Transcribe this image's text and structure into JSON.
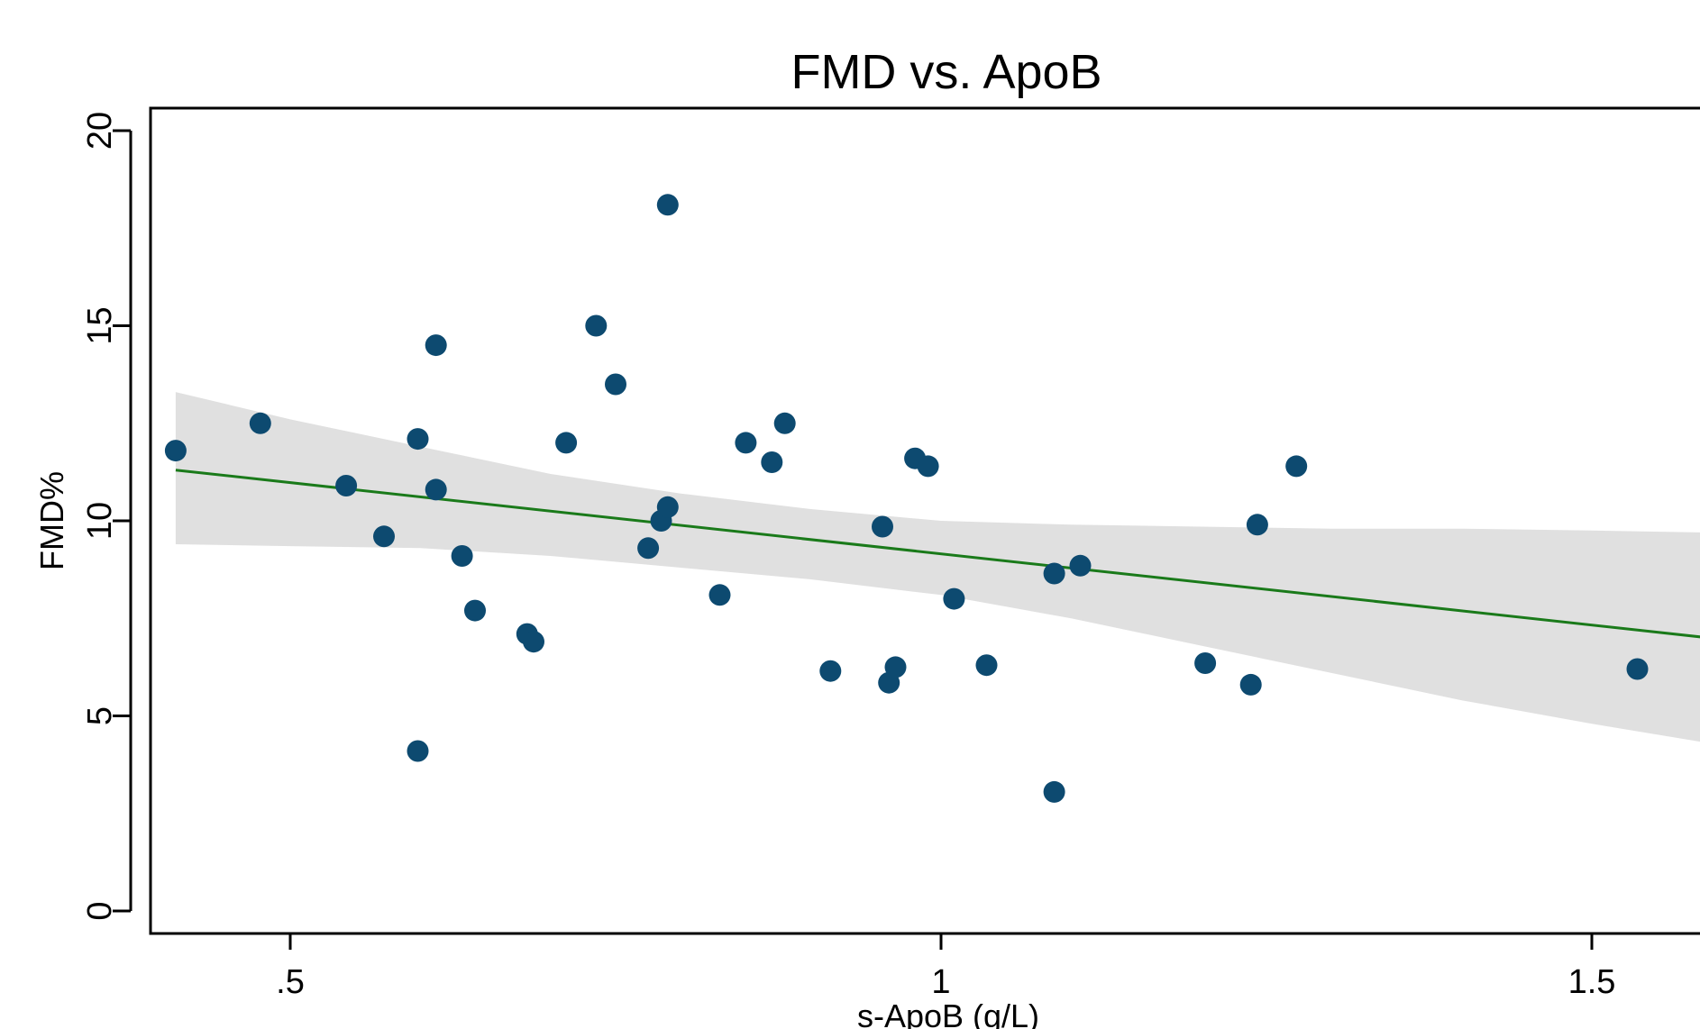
{
  "chart_data": {
    "type": "scatter",
    "title": "FMD vs. ApoB",
    "xlabel": "s-ApoB (g/L)",
    "ylabel": "FMD%",
    "xlim": [
      0.39,
      1.59
    ],
    "ylim": [
      -0.6,
      20.6
    ],
    "x_ticks": [
      0.5,
      1,
      1.5
    ],
    "x_tick_labels": [
      ".5",
      "1",
      "1.5"
    ],
    "y_ticks": [
      0,
      5,
      10,
      15,
      20
    ],
    "y_tick_labels": [
      "0",
      "5",
      "10",
      "15",
      "20"
    ],
    "grid": false,
    "legend": "none",
    "colors": {
      "points": "#0d4a70",
      "fit_line": "#1a7a1a",
      "ci_band": "#e0e0e0"
    },
    "points": [
      {
        "x": 0.412,
        "y": 11.8
      },
      {
        "x": 0.477,
        "y": 12.5
      },
      {
        "x": 0.543,
        "y": 10.9
      },
      {
        "x": 0.572,
        "y": 9.6
      },
      {
        "x": 0.598,
        "y": 12.1
      },
      {
        "x": 0.598,
        "y": 4.1
      },
      {
        "x": 0.612,
        "y": 14.5
      },
      {
        "x": 0.612,
        "y": 10.8
      },
      {
        "x": 0.632,
        "y": 9.1
      },
      {
        "x": 0.642,
        "y": 7.7
      },
      {
        "x": 0.682,
        "y": 7.1
      },
      {
        "x": 0.687,
        "y": 6.9
      },
      {
        "x": 0.712,
        "y": 12.0
      },
      {
        "x": 0.735,
        "y": 15.0
      },
      {
        "x": 0.75,
        "y": 13.5
      },
      {
        "x": 0.775,
        "y": 9.3
      },
      {
        "x": 0.785,
        "y": 10.0
      },
      {
        "x": 0.79,
        "y": 10.35
      },
      {
        "x": 0.79,
        "y": 18.1
      },
      {
        "x": 0.83,
        "y": 8.1
      },
      {
        "x": 0.85,
        "y": 12.0
      },
      {
        "x": 0.87,
        "y": 11.5
      },
      {
        "x": 0.88,
        "y": 12.5
      },
      {
        "x": 0.915,
        "y": 6.15
      },
      {
        "x": 0.955,
        "y": 9.85
      },
      {
        "x": 0.96,
        "y": 5.85
      },
      {
        "x": 0.965,
        "y": 6.25
      },
      {
        "x": 0.98,
        "y": 11.6
      },
      {
        "x": 0.99,
        "y": 11.4
      },
      {
        "x": 1.01,
        "y": 8.0
      },
      {
        "x": 1.035,
        "y": 6.3
      },
      {
        "x": 1.087,
        "y": 8.65
      },
      {
        "x": 1.087,
        "y": 3.05
      },
      {
        "x": 1.107,
        "y": 8.85
      },
      {
        "x": 1.203,
        "y": 6.35
      },
      {
        "x": 1.238,
        "y": 5.8
      },
      {
        "x": 1.243,
        "y": 9.9
      },
      {
        "x": 1.273,
        "y": 11.4
      },
      {
        "x": 1.535,
        "y": 6.2
      }
    ],
    "fit_line": [
      {
        "x": 0.412,
        "y": 11.3
      },
      {
        "x": 1.59,
        "y": 7.0
      }
    ],
    "ci_upper": [
      {
        "x": 0.412,
        "y": 13.3
      },
      {
        "x": 0.5,
        "y": 12.6
      },
      {
        "x": 0.6,
        "y": 11.9
      },
      {
        "x": 0.7,
        "y": 11.2
      },
      {
        "x": 0.8,
        "y": 10.7
      },
      {
        "x": 0.9,
        "y": 10.3
      },
      {
        "x": 1.0,
        "y": 10.0
      },
      {
        "x": 1.1,
        "y": 9.9
      },
      {
        "x": 1.2,
        "y": 9.85
      },
      {
        "x": 1.3,
        "y": 9.8
      },
      {
        "x": 1.4,
        "y": 9.8
      },
      {
        "x": 1.5,
        "y": 9.75
      },
      {
        "x": 1.59,
        "y": 9.7
      }
    ],
    "ci_lower": [
      {
        "x": 0.412,
        "y": 9.4
      },
      {
        "x": 0.5,
        "y": 9.35
      },
      {
        "x": 0.6,
        "y": 9.3
      },
      {
        "x": 0.7,
        "y": 9.1
      },
      {
        "x": 0.8,
        "y": 8.8
      },
      {
        "x": 0.9,
        "y": 8.5
      },
      {
        "x": 1.0,
        "y": 8.1
      },
      {
        "x": 1.1,
        "y": 7.5
      },
      {
        "x": 1.2,
        "y": 6.8
      },
      {
        "x": 1.3,
        "y": 6.1
      },
      {
        "x": 1.4,
        "y": 5.4
      },
      {
        "x": 1.5,
        "y": 4.8
      },
      {
        "x": 1.59,
        "y": 4.3
      }
    ]
  }
}
